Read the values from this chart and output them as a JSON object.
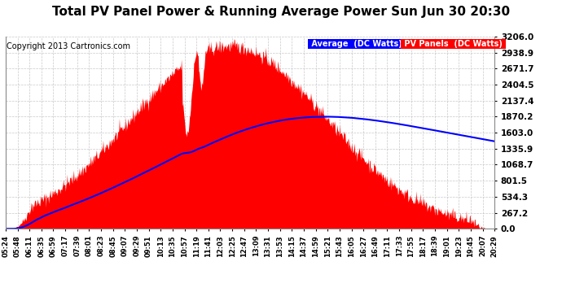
{
  "title": "Total PV Panel Power & Running Average Power Sun Jun 30 20:30",
  "copyright": "Copyright 2013 Cartronics.com",
  "legend_avg": "Average  (DC Watts)",
  "legend_pv": "PV Panels  (DC Watts)",
  "ymax": 3206.0,
  "yticks": [
    0.0,
    267.2,
    534.3,
    801.5,
    1068.7,
    1335.9,
    1603.0,
    1870.2,
    2137.4,
    2404.5,
    2671.7,
    2938.9,
    3206.0
  ],
  "bg_color": "#ffffff",
  "plot_bg_color": "#ffffff",
  "grid_color": "#bbbbbb",
  "fill_color": "#ff0000",
  "line_color": "#0000ff",
  "title_fontsize": 11,
  "copyright_fontsize": 7,
  "xtick_labels": [
    "05:24",
    "05:48",
    "06:11",
    "06:35",
    "06:59",
    "07:17",
    "07:39",
    "08:01",
    "08:23",
    "08:45",
    "09:07",
    "09:29",
    "09:51",
    "10:13",
    "10:35",
    "10:57",
    "11:19",
    "11:41",
    "12:03",
    "12:25",
    "12:47",
    "13:09",
    "13:31",
    "13:53",
    "14:15",
    "14:37",
    "14:59",
    "15:21",
    "15:43",
    "16:05",
    "16:27",
    "16:49",
    "17:11",
    "17:33",
    "17:55",
    "18:17",
    "18:39",
    "19:01",
    "19:23",
    "19:45",
    "20:07",
    "20:29"
  ]
}
